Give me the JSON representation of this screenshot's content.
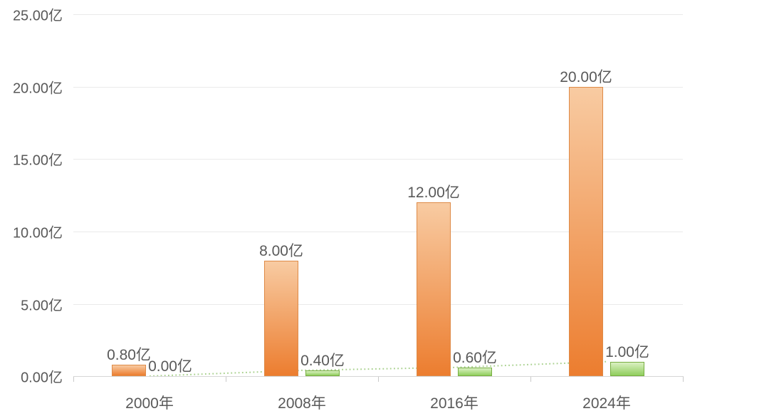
{
  "chart_data": {
    "type": "bar",
    "title": "",
    "categories": [
      "2000年",
      "2008年",
      "2016年",
      "2024年"
    ],
    "series": [
      {
        "name": "orange-bar-series",
        "type": "bar",
        "values": [
          0.8,
          8.0,
          12.0,
          20.0
        ],
        "labels": [
          "0.80亿",
          "8.00亿",
          "12.00亿",
          "20.00亿"
        ]
      },
      {
        "name": "green-bar-series",
        "type": "bar",
        "values": [
          0.0,
          0.4,
          0.6,
          1.0
        ],
        "labels": [
          "0.00亿",
          "0.40亿",
          "0.60亿",
          "1.00亿"
        ]
      },
      {
        "name": "green-dotted-trend-line",
        "type": "line",
        "style": "dotted",
        "values": [
          0.0,
          0.4,
          0.6,
          1.0
        ]
      }
    ],
    "xlabel": "",
    "ylabel": "",
    "y_ticks": [
      "0.00亿",
      "5.00亿",
      "10.00亿",
      "15.00亿",
      "20.00亿",
      "25.00亿"
    ],
    "y_tick_values": [
      0,
      5,
      10,
      15,
      20,
      25
    ],
    "ylim": [
      0,
      25
    ],
    "grid": true,
    "legend": false
  },
  "colors": {
    "orange_top": "#f8cba2",
    "orange_bottom": "#ec7d2f",
    "orange_border": "#de8a47",
    "green_top": "#daf0c2",
    "green_bottom": "#90ce5d",
    "green_border": "#77ae41",
    "trend_line": "#a9d18e",
    "gridline": "#eaeaea",
    "axis_line": "#d6d6d6",
    "tick": "#c9c9c9",
    "text": "#595959",
    "background": "#ffffff"
  }
}
